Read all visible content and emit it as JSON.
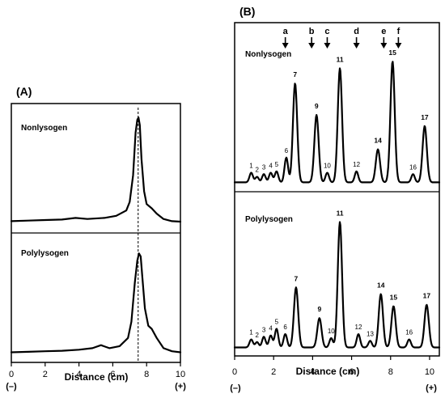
{
  "chart_data": [
    {
      "type": "line",
      "panel": "(A)",
      "xlabel": "Distance (cm)",
      "x_ticks": [
        0,
        2,
        4,
        6,
        8,
        10
      ],
      "xlim": [
        0,
        10
      ],
      "ylim": [
        0,
        1
      ],
      "end_labels": {
        "left": "(–)",
        "right": "(+)"
      },
      "dashed_line_x": 7.5,
      "series": [
        {
          "name": "Nonlysogen",
          "x": [
            0,
            1,
            2,
            3,
            3.8,
            4.5,
            5.5,
            6.2,
            6.8,
            7.0,
            7.2,
            7.35,
            7.45,
            7.52,
            7.6,
            7.7,
            7.85,
            8.0,
            8.3,
            8.6,
            9.0,
            9.5,
            10
          ],
          "y": [
            0.02,
            0.025,
            0.03,
            0.035,
            0.05,
            0.04,
            0.05,
            0.07,
            0.12,
            0.2,
            0.45,
            0.85,
            0.97,
            0.99,
            0.92,
            0.6,
            0.3,
            0.18,
            0.14,
            0.09,
            0.04,
            0.02,
            0.015
          ]
        },
        {
          "name": "Polylysogen",
          "x": [
            0,
            1,
            2,
            3,
            4,
            4.8,
            5.3,
            5.8,
            6.4,
            6.9,
            7.1,
            7.3,
            7.45,
            7.55,
            7.65,
            7.75,
            7.9,
            8.1,
            8.3,
            8.6,
            9.0,
            9.5,
            10
          ],
          "y": [
            0.02,
            0.025,
            0.03,
            0.035,
            0.045,
            0.06,
            0.09,
            0.06,
            0.08,
            0.16,
            0.32,
            0.7,
            0.92,
            0.99,
            0.96,
            0.75,
            0.45,
            0.28,
            0.25,
            0.16,
            0.06,
            0.03,
            0.02
          ]
        }
      ]
    },
    {
      "type": "line",
      "panel": "(B)",
      "xlabel": "Distance (cm)",
      "x_ticks": [
        0,
        2,
        4,
        6,
        8,
        10
      ],
      "xlim": [
        0,
        10.5
      ],
      "ylim": [
        0,
        1
      ],
      "end_labels": {
        "left": "(–)",
        "right": "(+)"
      },
      "markers": [
        {
          "label": "a",
          "x": 2.6
        },
        {
          "label": "b",
          "x": 3.95
        },
        {
          "label": "c",
          "x": 4.75
        },
        {
          "label": "d",
          "x": 6.25
        },
        {
          "label": "e",
          "x": 7.65
        },
        {
          "label": "f",
          "x": 8.4
        }
      ],
      "series": [
        {
          "name": "Nonlysogen",
          "peaks": [
            {
              "label": "1",
              "x": 0.85,
              "y": 0.07
            },
            {
              "label": "2",
              "x": 1.15,
              "y": 0.04
            },
            {
              "label": "3",
              "x": 1.5,
              "y": 0.06
            },
            {
              "label": "4",
              "x": 1.85,
              "y": 0.07
            },
            {
              "label": "5",
              "x": 2.15,
              "y": 0.08
            },
            {
              "label": "6",
              "x": 2.65,
              "y": 0.18
            },
            {
              "label": "7",
              "x": 3.1,
              "y": 0.72
            },
            {
              "label": "9",
              "x": 4.2,
              "y": 0.49
            },
            {
              "label": "10",
              "x": 4.75,
              "y": 0.07
            },
            {
              "label": "11",
              "x": 5.4,
              "y": 0.83
            },
            {
              "label": "12",
              "x": 6.25,
              "y": 0.08
            },
            {
              "label": "14",
              "x": 7.35,
              "y": 0.24
            },
            {
              "label": "15",
              "x": 8.1,
              "y": 0.88
            },
            {
              "label": "16",
              "x": 9.15,
              "y": 0.06
            },
            {
              "label": "17",
              "x": 9.75,
              "y": 0.41
            }
          ]
        },
        {
          "name": "Polylysogen",
          "peaks": [
            {
              "label": "1",
              "x": 0.85,
              "y": 0.06
            },
            {
              "label": "2",
              "x": 1.15,
              "y": 0.04
            },
            {
              "label": "3",
              "x": 1.5,
              "y": 0.08
            },
            {
              "label": "4",
              "x": 1.85,
              "y": 0.09
            },
            {
              "label": "5",
              "x": 2.15,
              "y": 0.14
            },
            {
              "label": "6",
              "x": 2.6,
              "y": 0.1
            },
            {
              "label": "7",
              "x": 3.15,
              "y": 0.45
            },
            {
              "label": "9",
              "x": 4.35,
              "y": 0.22
            },
            {
              "label": "10",
              "x": 4.95,
              "y": 0.07
            },
            {
              "label": "11",
              "x": 5.4,
              "y": 0.94
            },
            {
              "label": "12",
              "x": 6.35,
              "y": 0.1
            },
            {
              "label": "13",
              "x": 6.95,
              "y": 0.05
            },
            {
              "label": "14",
              "x": 7.5,
              "y": 0.4
            },
            {
              "label": "15",
              "x": 8.15,
              "y": 0.31
            },
            {
              "label": "16",
              "x": 8.95,
              "y": 0.06
            },
            {
              "label": "17",
              "x": 9.85,
              "y": 0.32
            }
          ]
        }
      ]
    }
  ]
}
